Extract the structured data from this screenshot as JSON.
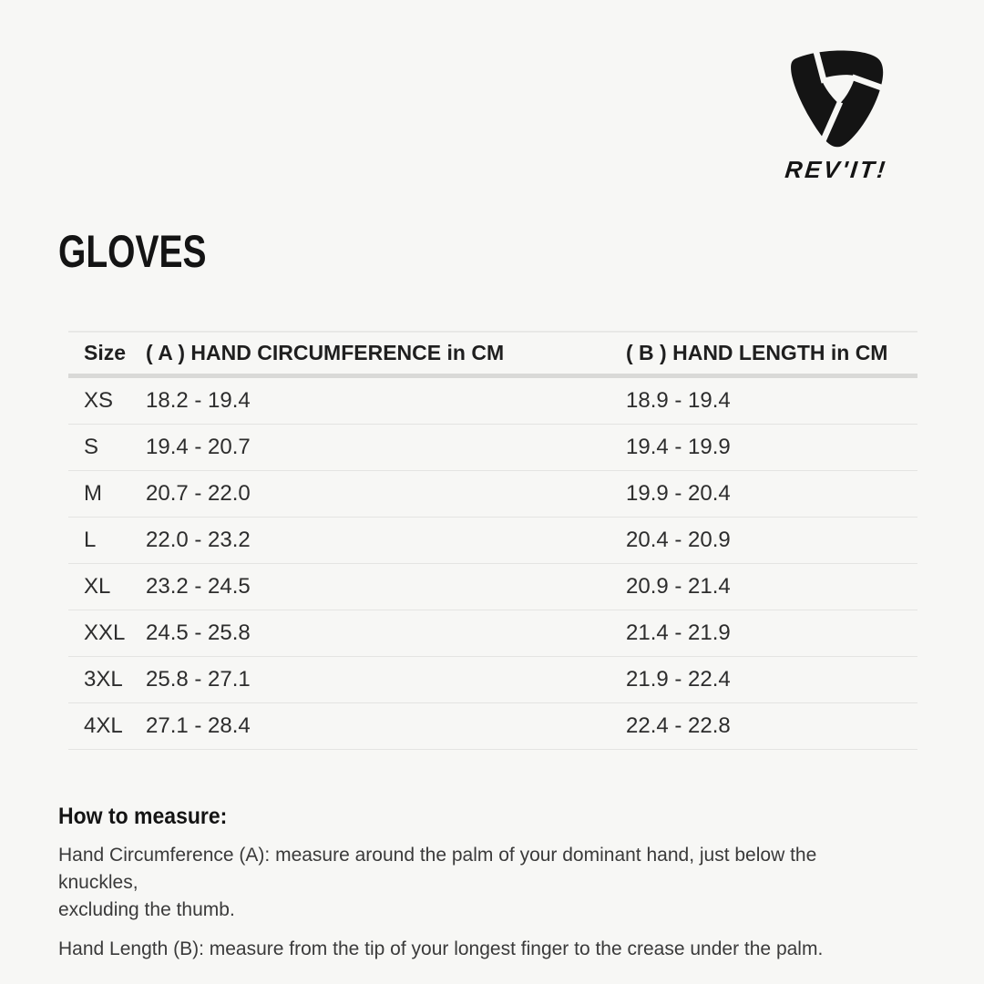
{
  "page": {
    "background_color": "#f7f7f5",
    "accent_color": "#141414"
  },
  "brand": {
    "wordmark": "REV'IT!",
    "logo_icon": "revit-shield-icon",
    "logo_color": "#141414"
  },
  "title": "GLOVES",
  "size_table": {
    "columns": [
      "Size",
      "( A ) HAND CIRCUMFERENCE in CM",
      "( B ) HAND LENGTH in CM"
    ],
    "rows": [
      {
        "size": "XS",
        "hand_circumference_cm": "18.2 - 19.4",
        "hand_length_cm": "18.9 - 19.4"
      },
      {
        "size": "S",
        "hand_circumference_cm": "19.4 - 20.7",
        "hand_length_cm": "19.4 - 19.9"
      },
      {
        "size": "M",
        "hand_circumference_cm": "20.7 - 22.0",
        "hand_length_cm": "19.9 - 20.4"
      },
      {
        "size": "L",
        "hand_circumference_cm": "22.0 - 23.2",
        "hand_length_cm": "20.4 - 20.9"
      },
      {
        "size": "XL",
        "hand_circumference_cm": "23.2 - 24.5",
        "hand_length_cm": "20.9 - 21.4"
      },
      {
        "size": "XXL",
        "hand_circumference_cm": "24.5 - 25.8",
        "hand_length_cm": "21.4 - 21.9"
      },
      {
        "size": "3XL",
        "hand_circumference_cm": "25.8 - 27.1",
        "hand_length_cm": "21.9 - 22.4"
      },
      {
        "size": "4XL",
        "hand_circumference_cm": "27.1 - 28.4",
        "hand_length_cm": "22.4 - 22.8"
      }
    ]
  },
  "how_to_measure": {
    "heading": "How to measure:",
    "paragraphs": [
      "Hand Circumference (A): measure around the palm of your dominant hand, just below the knuckles,\nexcluding the thumb.",
      "Hand Length (B): measure from the tip of your longest finger to the crease under the palm."
    ]
  }
}
